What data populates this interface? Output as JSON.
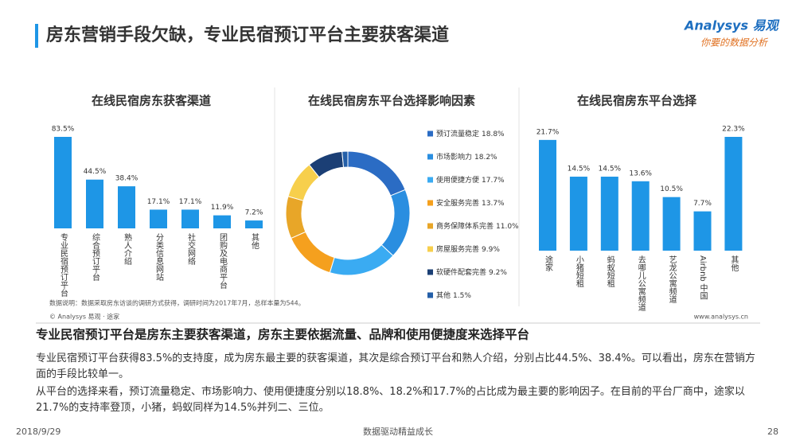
{
  "header": {
    "title": "房东营销手段欠缺，专业民宿预订平台主要获客渠道"
  },
  "logo": {
    "name": "Analysys 易观",
    "tagline": "你要的数据分析"
  },
  "chart_data": [
    {
      "type": "bar",
      "title": "在线民宿房东获客渠道",
      "categories": [
        "专业民宿预订平台",
        "综合预订平台",
        "熟人介绍",
        "分类信息网站",
        "社交网络",
        "团购及电商平台",
        "其他"
      ],
      "values": [
        83.5,
        44.5,
        38.4,
        17.1,
        17.1,
        11.9,
        7.2
      ],
      "value_labels": [
        "83.5%",
        "44.5%",
        "38.4%",
        "17.1%",
        "17.1%",
        "11.9%",
        "7.2%"
      ],
      "color": "#1e96e6"
    },
    {
      "type": "donut",
      "title": "在线民宿房东平台选择影响因素",
      "categories": [
        "预订流量稳定",
        "市场影响力",
        "使用便捷方便",
        "安全服务完善",
        "商务保障体系完善",
        "房屋服务完善",
        "软硬件配套完善",
        "其他"
      ],
      "values": [
        18.8,
        18.2,
        17.7,
        13.7,
        11.0,
        9.9,
        9.2,
        1.5
      ],
      "value_labels": [
        "18.8%",
        "18.2%",
        "17.7%",
        "13.7%",
        "11.0%",
        "9.9%",
        "9.2%",
        "1.5%"
      ],
      "colors": [
        "#2b6cc4",
        "#2a8ee0",
        "#3aabf2",
        "#f5a01e",
        "#e8a628",
        "#f7cf4c",
        "#1b3f75",
        "#245fa8"
      ]
    },
    {
      "type": "bar",
      "title": "在线民宿房东平台选择",
      "categories": [
        "途家",
        "小猪短租",
        "蚂蚁短租",
        "去哪儿公寓频道",
        "艺龙公寓频道",
        "Airbnb 中国",
        "其他"
      ],
      "values": [
        21.7,
        14.5,
        14.5,
        13.6,
        10.5,
        7.7,
        22.3
      ],
      "value_labels": [
        "21.7%",
        "14.5%",
        "14.5%",
        "13.6%",
        "10.5%",
        "7.7%",
        "22.3%"
      ],
      "color": "#1e96e6"
    }
  ],
  "note": "数据说明：数据采取房东访谈的调研方式获得，调研时间为2017年7月，总样本量为544。",
  "source": "© Analysys 易观 · 途家",
  "website": "www.analysys.cn",
  "summary": {
    "heading": "专业民宿预订平台是房东主要获客渠道，房东主要依据流量、品牌和使用便捷度来选择平台",
    "paragraphs": [
      "专业民宿预订平台获得83.5%的支持度，成为房东最主要的获客渠道，其次是综合预订平台和熟人介绍，分别占比44.5%、38.4%。可以看出，房东在营销方面的手段比较单一。",
      "从平台的选择来看，预订流量稳定、市场影响力、使用便捷度分别以18.8%、18.2%和17.7%的占比成为最主要的影响因子。在目前的平台厂商中，途家以21.7%的支持率登顶，小猪，蚂蚁同样为14.5%并列二、三位。"
    ]
  },
  "footer": {
    "date": "2018/9/29",
    "center": "数据驱动精益成长",
    "page": "28"
  }
}
